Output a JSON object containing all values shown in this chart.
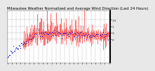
{
  "title": "Milwaukee Weather Normalized and Average Wind Direction (Last 24 Hours)",
  "bg_color": "#e8e8e8",
  "plot_bg_color": "#ffffff",
  "n_points": 144,
  "ylim": [
    -1.8,
    2.2
  ],
  "yticks": [
    0.0,
    0.5,
    1.0,
    1.5
  ],
  "ytick_labels": [
    "0",
    ".5",
    "1",
    "1.5"
  ],
  "grid_color": "#bbbbbb",
  "red_color": "#ff0000",
  "blue_color": "#0000cc",
  "title_fontsize": 3.8,
  "tick_fontsize": 3.0,
  "n_xticks": 24
}
